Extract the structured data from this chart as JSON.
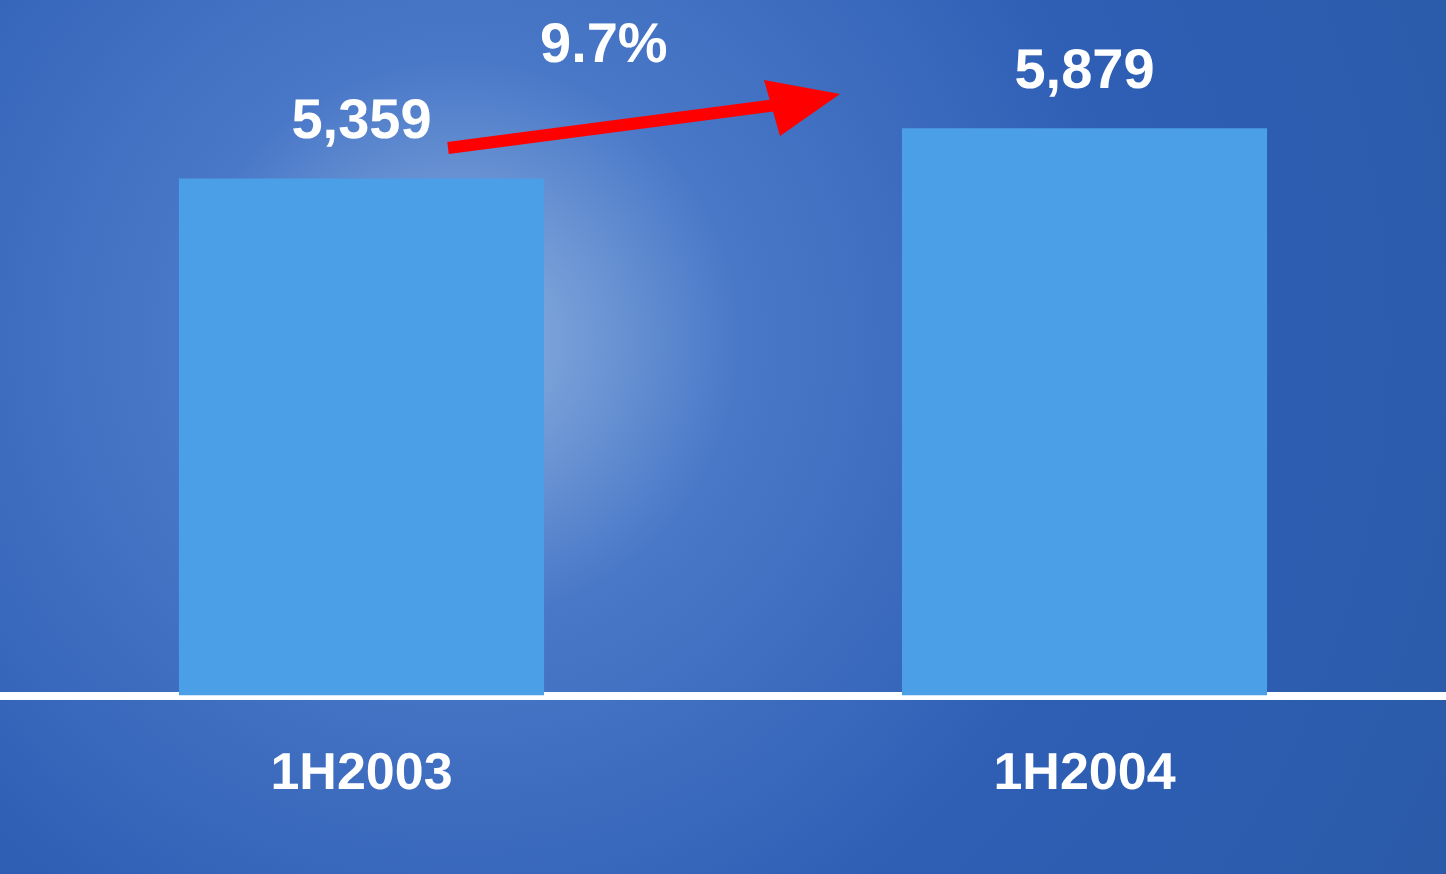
{
  "chart_data": {
    "type": "bar",
    "categories": [
      "1H2003",
      "1H2004"
    ],
    "values": [
      5359,
      5879
    ],
    "color": "#4a9fe6",
    "value_labels": [
      "5,359",
      "5,879"
    ],
    "annotations": [
      "9.7%"
    ]
  }
}
